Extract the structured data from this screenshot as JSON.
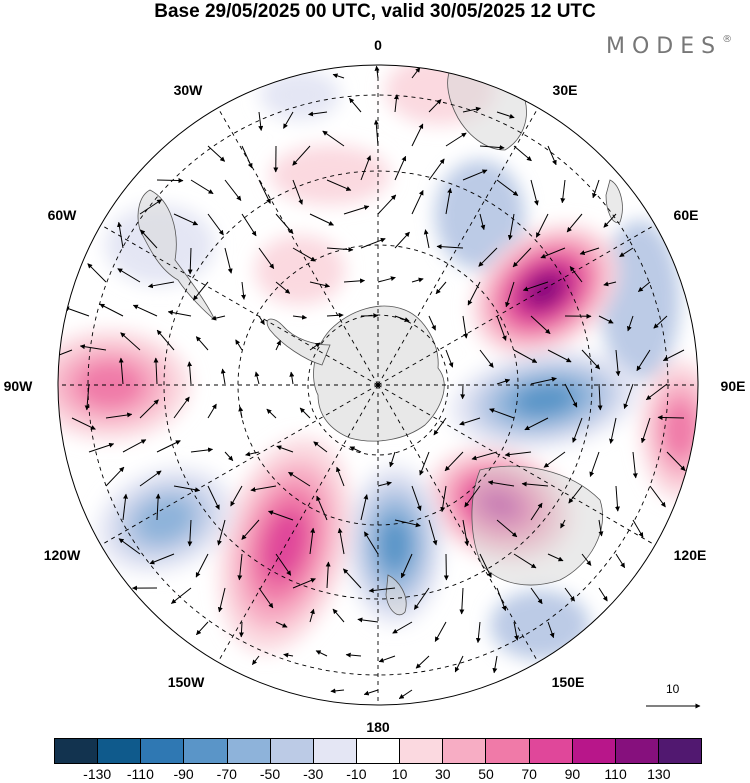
{
  "title": "Base 29/05/2025 00 UTC, valid 30/05/2025 12 UTC",
  "brand": {
    "name": "MODES",
    "symbol": "®"
  },
  "map": {
    "projection": "south-polar-stereographic",
    "longitude_labels": [
      "0",
      "30E",
      "60E",
      "90E",
      "120E",
      "150E",
      "180",
      "150W",
      "120W",
      "90W",
      "60W",
      "30W"
    ],
    "reference_vector": "10",
    "shaded_anomalies": [
      {
        "name": "pos-60E",
        "sign": "positive",
        "peak": 120
      },
      {
        "name": "neg-90E",
        "sign": "negative",
        "peak": -90
      },
      {
        "name": "pos-120E",
        "sign": "positive",
        "peak": 110
      },
      {
        "name": "neg-165E",
        "sign": "negative",
        "peak": -90
      },
      {
        "name": "pos-150W",
        "sign": "positive",
        "peak": 80
      },
      {
        "name": "neg-120W",
        "sign": "negative",
        "peak": -70
      },
      {
        "name": "pos-90W",
        "sign": "positive",
        "peak": 60
      },
      {
        "name": "pos-100E",
        "sign": "positive",
        "peak": 60
      }
    ]
  },
  "colorbar": {
    "colors": [
      "#12334f",
      "#0f5a8c",
      "#2f78b3",
      "#5a95c8",
      "#8eb3da",
      "#bccbe6",
      "#e4e6f4",
      "#ffffff",
      "#fbd9e0",
      "#f7adc4",
      "#f07aa8",
      "#e0479a",
      "#b8168a",
      "#86107d",
      "#511870"
    ],
    "tick_labels": [
      "-130",
      "-110",
      "-90",
      "-70",
      "-50",
      "-30",
      "-10",
      "10",
      "30",
      "50",
      "70",
      "90",
      "110",
      "130"
    ]
  },
  "colors": {
    "continent": "#e6e6e6",
    "coast": "#555555",
    "grid": "#000000"
  }
}
